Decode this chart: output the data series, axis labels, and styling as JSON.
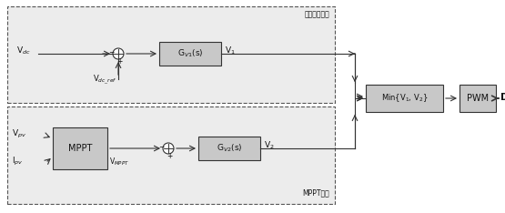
{
  "box_fill": "#c8c8c8",
  "line_color": "#333333",
  "text_color": "#111111",
  "dash_fill": "#e8e8e8",
  "title_top": "输出恒压控制",
  "title_bottom": "MPPT控制",
  "label_Vdc": "V$_{dc}$",
  "label_Vdc_ref": "V$_{dc\\_ref}$",
  "label_Gv1": "G$_{V1}$(s)",
  "label_V1": "V$_1$",
  "label_Vpv": "V$_{pv}$",
  "label_Ipv": "I$_{pv}$",
  "label_MPPT": "MPPT",
  "label_Vmppt": "V$_{MPPT}$",
  "label_Gv2": "G$_{V2}$(s)",
  "label_V2": "V$_2$",
  "label_Min": "Min{V$_1$, V$_2$}",
  "label_PWM": "PWM",
  "label_D": "D",
  "fig_w": 5.55,
  "fig_h": 2.34,
  "dpi": 100
}
